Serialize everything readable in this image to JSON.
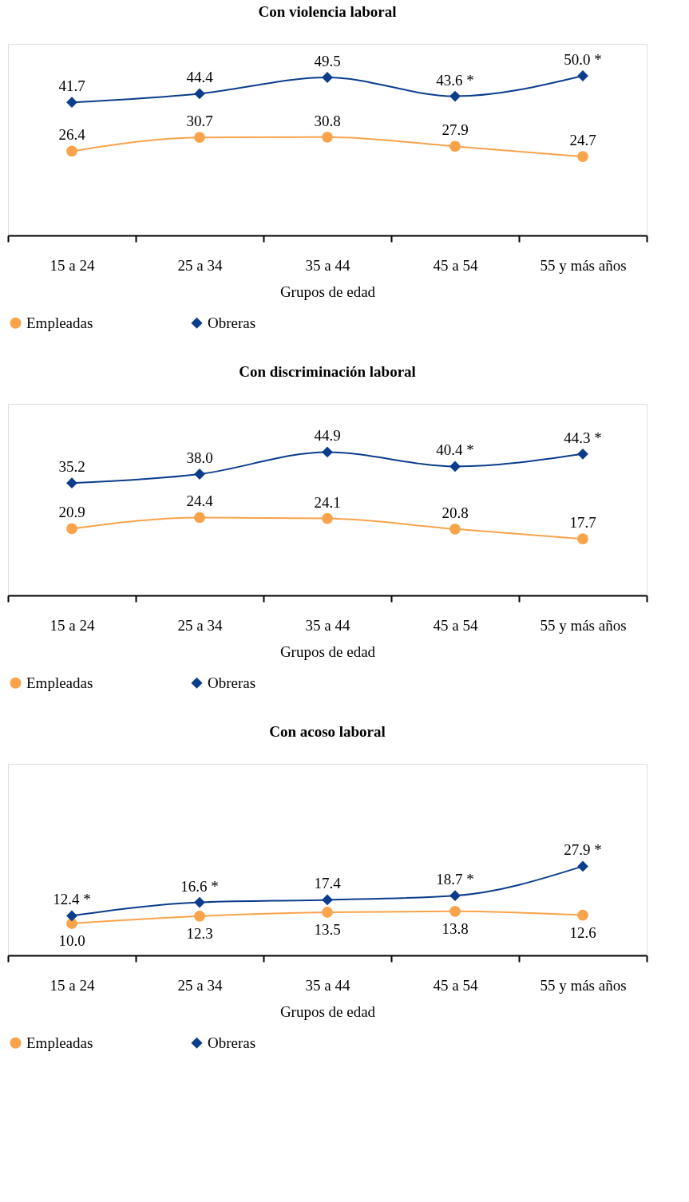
{
  "chart_data": [
    {
      "type": "line",
      "title": "Con violencia laboral",
      "xlabel": "Grupos de edad",
      "categories": [
        "15 a 24",
        "25 a 34",
        "35 a 44",
        "45 a 54",
        "55 y más años"
      ],
      "ylim": [
        0,
        60
      ],
      "tick_labels": "x",
      "legend": "bottom",
      "data_labels": true,
      "grid": false,
      "series": [
        {
          "name": "Empleadas",
          "color": "#f9a34b",
          "marker": "circle",
          "values": [
            26.4,
            30.7,
            30.8,
            27.9,
            24.7
          ],
          "value_labels": [
            "26.4",
            "30.7",
            "30.8",
            "27.9",
            "24.7"
          ]
        },
        {
          "name": "Obreras",
          "color": "#0b3d8c",
          "marker": "diamond",
          "values": [
            41.7,
            44.4,
            49.5,
            43.6,
            50.0
          ],
          "value_labels": [
            "41.7",
            "44.4",
            "49.5",
            "43.6 *",
            "50.0 *"
          ]
        }
      ]
    },
    {
      "type": "line",
      "title": "Con discriminación laboral",
      "xlabel": "Grupos de edad",
      "categories": [
        "15 a 24",
        "25 a 34",
        "35 a 44",
        "45 a 54",
        "55 y más años"
      ],
      "ylim": [
        0,
        60
      ],
      "tick_labels": "x",
      "legend": "bottom",
      "data_labels": true,
      "grid": false,
      "series": [
        {
          "name": "Empleadas",
          "color": "#f9a34b",
          "marker": "circle",
          "values": [
            20.9,
            24.4,
            24.1,
            20.8,
            17.7
          ],
          "value_labels": [
            "20.9",
            "24.4",
            "24.1",
            "20.8",
            "17.7"
          ]
        },
        {
          "name": "Obreras",
          "color": "#0b3d8c",
          "marker": "diamond",
          "values": [
            35.2,
            38.0,
            44.9,
            40.4,
            44.3
          ],
          "value_labels": [
            "35.2",
            "38.0",
            "44.9",
            "40.4 *",
            "44.3 *"
          ]
        }
      ]
    },
    {
      "type": "line",
      "title": "Con acoso laboral",
      "xlabel": "Grupos de edad",
      "categories": [
        "15 a 24",
        "25 a 34",
        "35 a 44",
        "45 a 54",
        "55 y más años"
      ],
      "ylim": [
        0,
        60
      ],
      "tick_labels": "x",
      "legend": "bottom",
      "data_labels": true,
      "grid": false,
      "series": [
        {
          "name": "Empleadas",
          "color": "#f9a34b",
          "marker": "circle",
          "values": [
            10.0,
            12.3,
            13.5,
            13.8,
            12.6
          ],
          "value_labels": [
            "10.0",
            "12.3",
            "13.5",
            "13.8",
            "12.6"
          ]
        },
        {
          "name": "Obreras",
          "color": "#0b3d8c",
          "marker": "diamond",
          "values": [
            12.4,
            16.6,
            17.4,
            18.7,
            27.9
          ],
          "value_labels": [
            "12.4 *",
            "16.6 *",
            "17.4",
            "18.7 *",
            "27.9 *"
          ]
        }
      ]
    }
  ]
}
